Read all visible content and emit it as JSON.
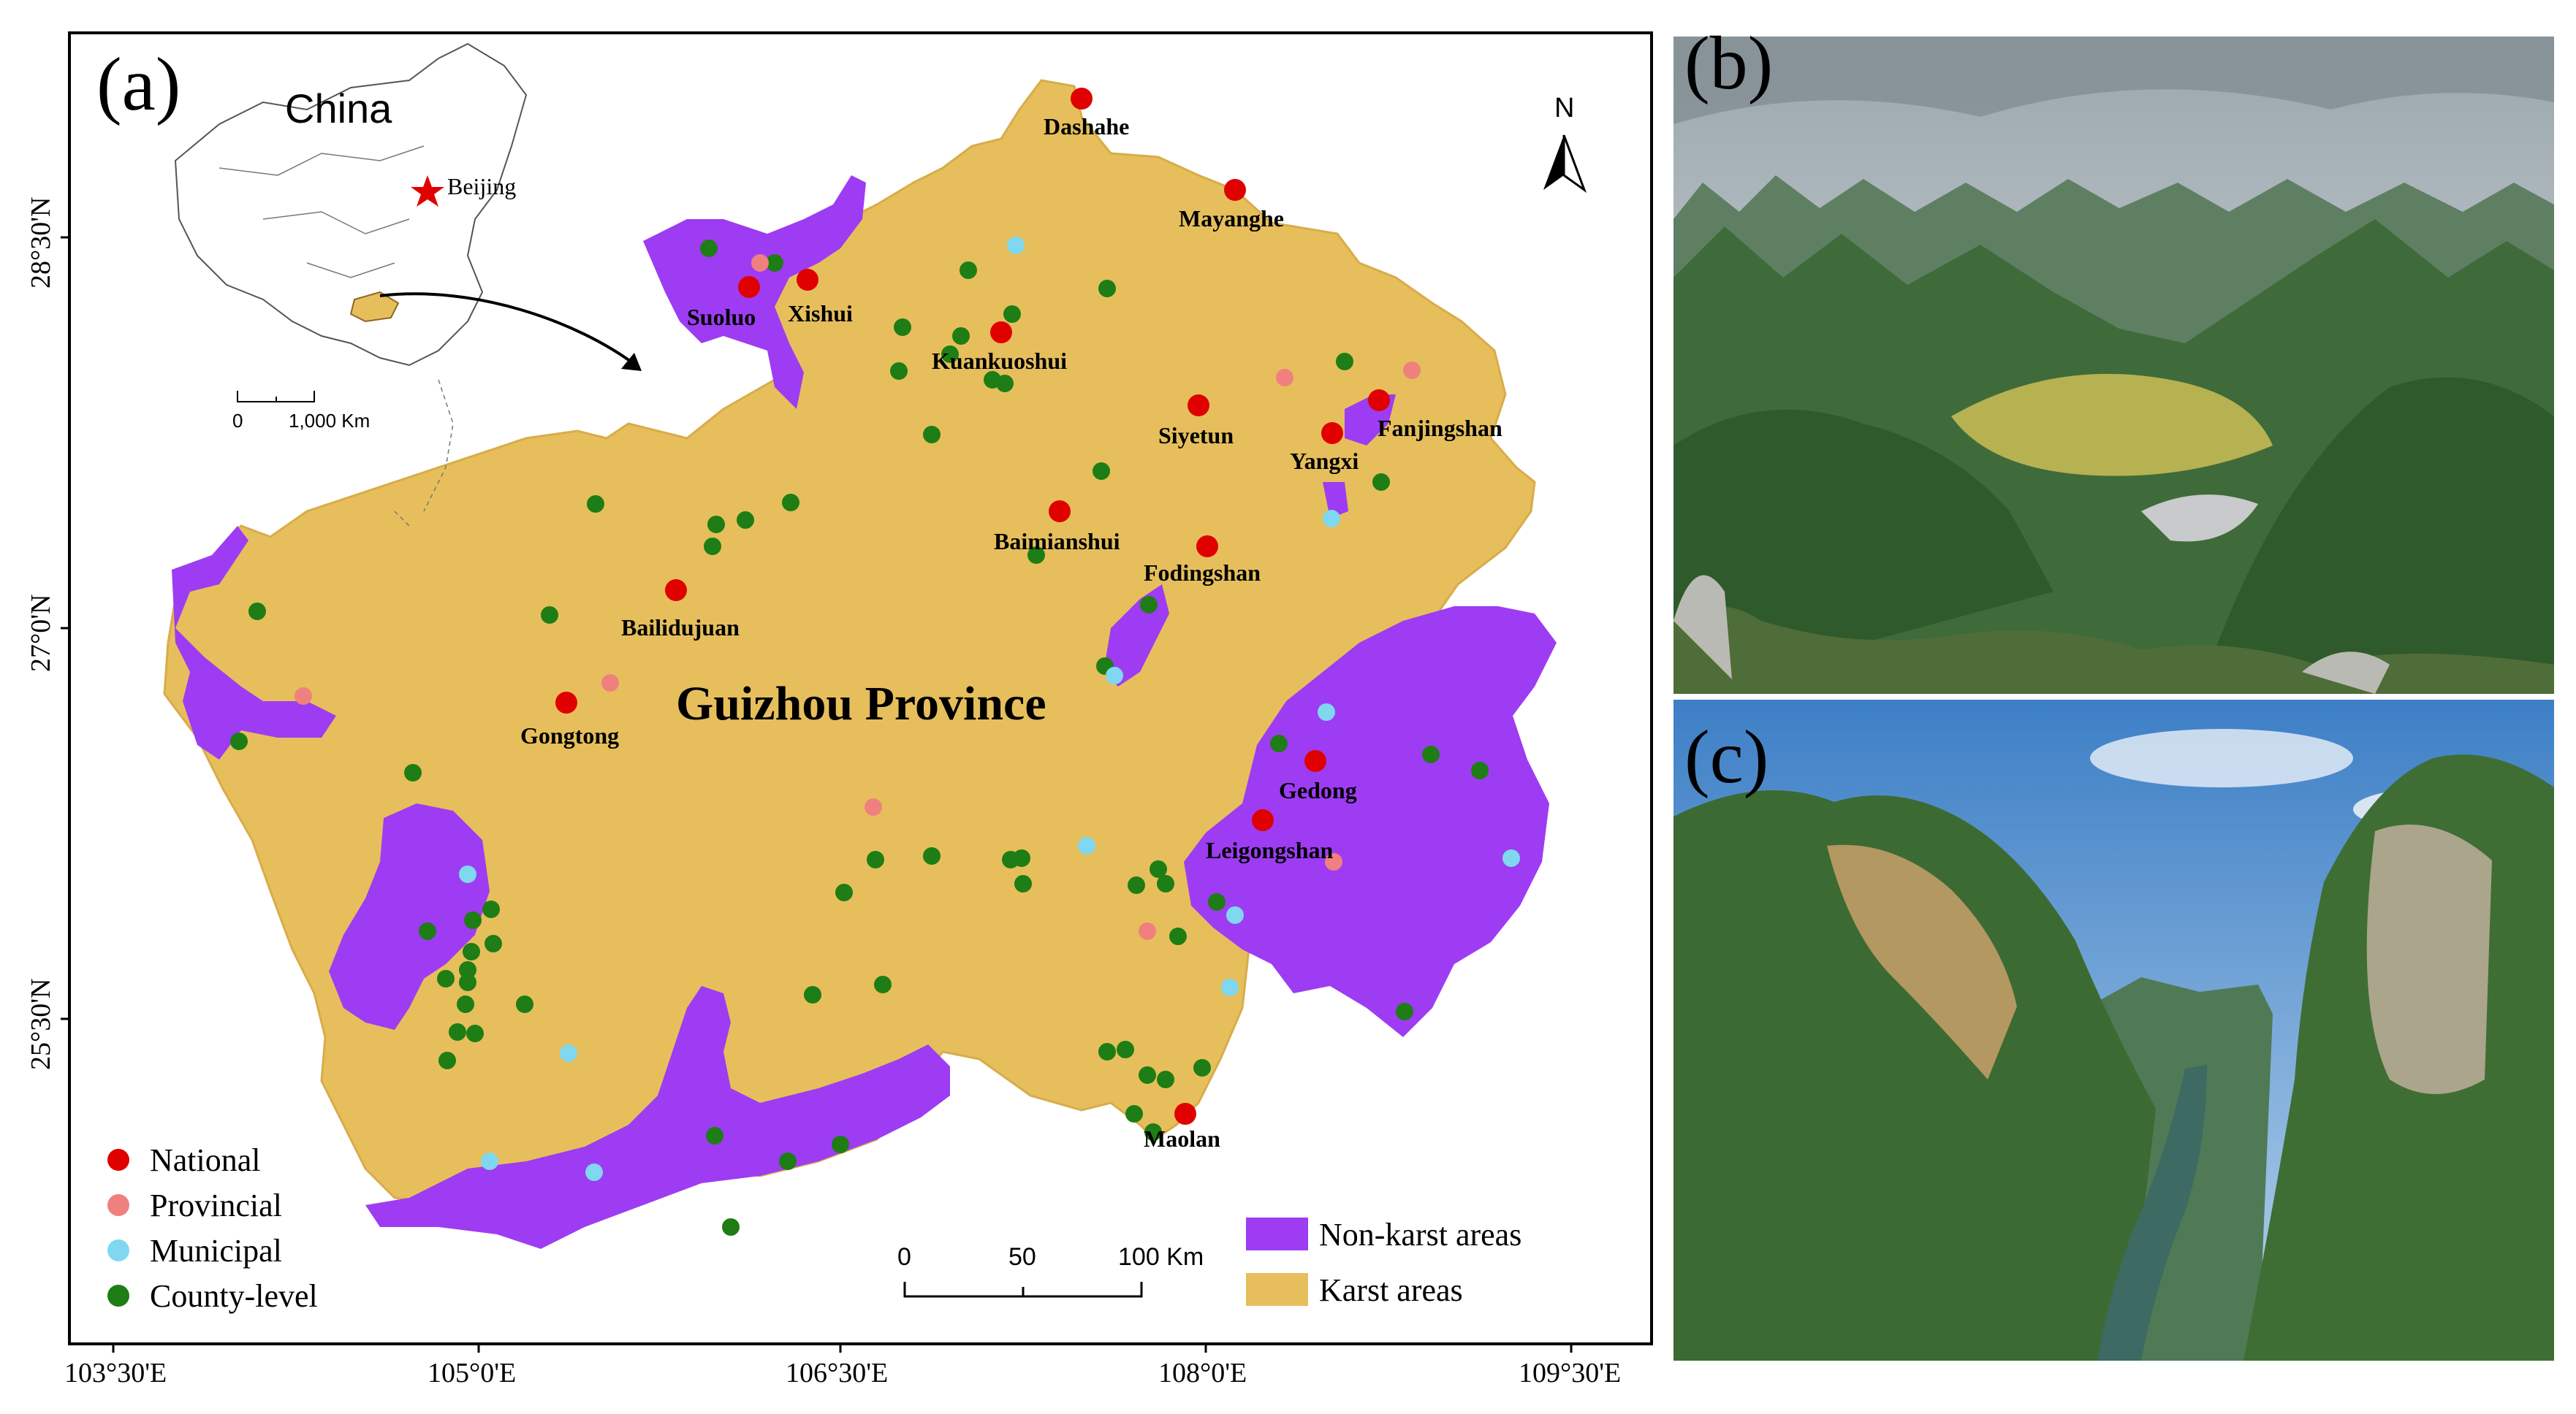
{
  "panels": {
    "a": "(a)",
    "b": "(b)",
    "c": "(c)"
  },
  "map": {
    "province_label": "Guizhou Province",
    "inset": {
      "country_label": "China",
      "capital_label": "Beijing",
      "scale_labels": [
        "0",
        "1,000 Km"
      ]
    },
    "north_label": "N",
    "scale_bar": {
      "labels": [
        "0",
        "50",
        "100 Km"
      ]
    },
    "lon_labels": [
      "103°30'E",
      "105°0'E",
      "106°30'E",
      "108°0'E",
      "109°30'E"
    ],
    "lat_labels": [
      "28°30'N",
      "27°0'N",
      "25°30'N"
    ],
    "area_legend": {
      "non_karst": "Non-karst areas",
      "karst": "Karst areas"
    },
    "site_legend": [
      {
        "label": "National",
        "color": "#e00000"
      },
      {
        "label": "Provincial",
        "color": "#f08080"
      },
      {
        "label": "Municipal",
        "color": "#7fd8f0"
      },
      {
        "label": "County-level",
        "color": "#1e7d14"
      }
    ],
    "colors": {
      "karst": "#e6bf5c",
      "non_karst": "#9d3cf2"
    },
    "national_sites": [
      "Dashahe",
      "Mayanghe",
      "Suoluo",
      "Xishui",
      "Kuankuoshui",
      "Siyetun",
      "Yangxi",
      "Fanjingshan",
      "Baimianshui",
      "Fodingshan",
      "Bailidujuan",
      "Gongtong",
      "Gedong",
      "Leigongshan",
      "Maolan"
    ]
  }
}
